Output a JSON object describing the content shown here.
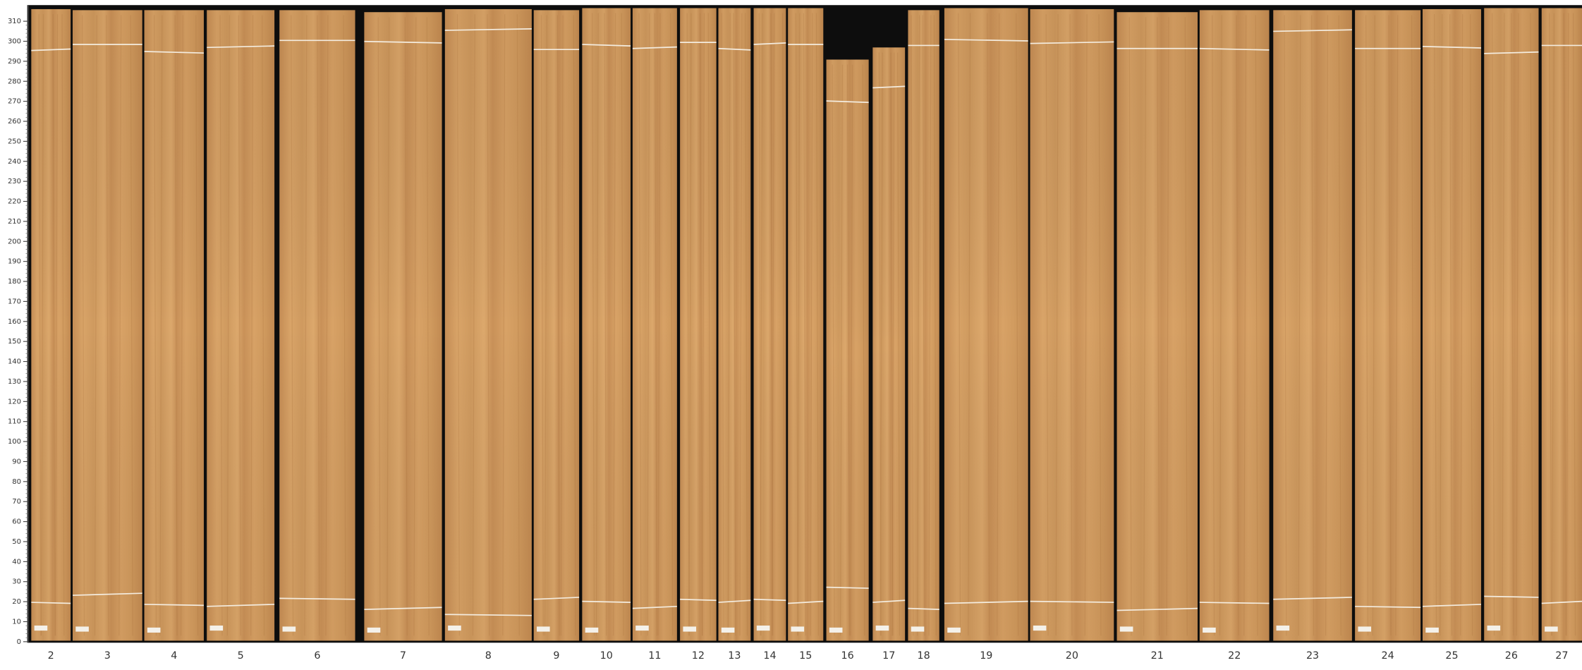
{
  "ruler": {
    "ticks": [
      0,
      10,
      20,
      30,
      40,
      50,
      60,
      70,
      80,
      90,
      100,
      110,
      120,
      130,
      140,
      150,
      160,
      170,
      180,
      190,
      200,
      210,
      220,
      230,
      240,
      250,
      260,
      270,
      280,
      290,
      300,
      310
    ]
  },
  "boards": {
    "labels": [
      2,
      3,
      4,
      5,
      6,
      7,
      8,
      9,
      10,
      11,
      12,
      13,
      14,
      15,
      16,
      17,
      18,
      19,
      20,
      21,
      22,
      23,
      24,
      25,
      26,
      27
    ]
  }
}
